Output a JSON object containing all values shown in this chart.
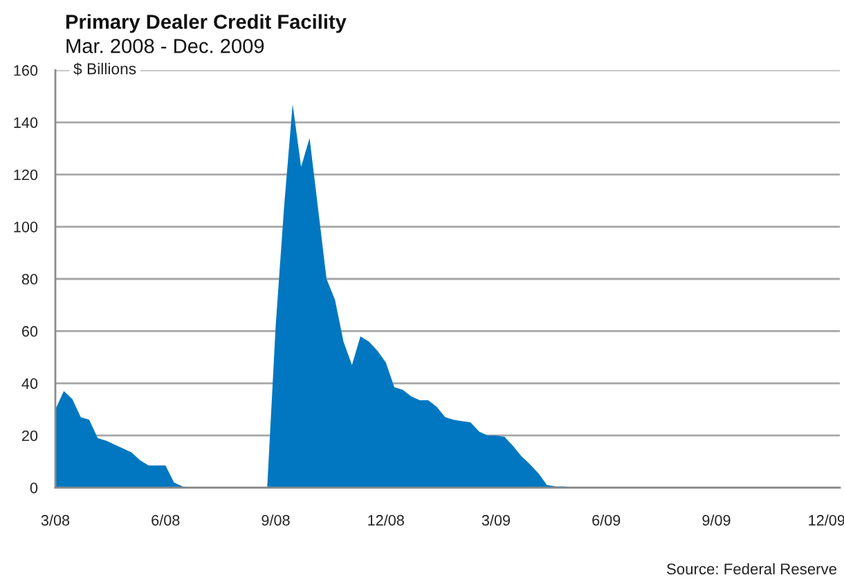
{
  "chart_data": {
    "type": "area",
    "title": "Primary Dealer Credit Facility",
    "subtitle": "Mar. 2008 - Dec. 2009",
    "ylabel": "$ Billions",
    "annotations": [
      "Source: Federal Reserve"
    ],
    "x": [
      "2008-03-19",
      "2008-03-26",
      "2008-04-02",
      "2008-04-09",
      "2008-04-16",
      "2008-04-23",
      "2008-04-30",
      "2008-05-07",
      "2008-05-14",
      "2008-05-21",
      "2008-05-28",
      "2008-06-04",
      "2008-06-11",
      "2008-06-18",
      "2008-06-25",
      "2008-07-02",
      "2008-07-09",
      "2008-07-16",
      "2008-07-23",
      "2008-07-30",
      "2008-08-06",
      "2008-08-13",
      "2008-08-20",
      "2008-08-27",
      "2008-09-03",
      "2008-09-10",
      "2008-09-17",
      "2008-09-24",
      "2008-10-01",
      "2008-10-08",
      "2008-10-15",
      "2008-10-22",
      "2008-10-29",
      "2008-11-05",
      "2008-11-12",
      "2008-11-19",
      "2008-11-26",
      "2008-12-03",
      "2008-12-10",
      "2008-12-17",
      "2008-12-24",
      "2008-12-31",
      "2009-01-07",
      "2009-01-14",
      "2009-01-21",
      "2009-01-28",
      "2009-02-04",
      "2009-02-11",
      "2009-02-18",
      "2009-02-25",
      "2009-03-04",
      "2009-03-11",
      "2009-03-18",
      "2009-03-25",
      "2009-04-01",
      "2009-04-08",
      "2009-04-15",
      "2009-04-22",
      "2009-04-29",
      "2009-05-06",
      "2009-05-13",
      "2009-05-20",
      "2009-05-27",
      "2009-06-03",
      "2009-06-10",
      "2009-06-17",
      "2009-06-24",
      "2009-07-01",
      "2009-07-08",
      "2009-07-15",
      "2009-07-22",
      "2009-07-29",
      "2009-08-05",
      "2009-08-12",
      "2009-08-19",
      "2009-08-26",
      "2009-09-02",
      "2009-09-09",
      "2009-09-16",
      "2009-09-23",
      "2009-09-30",
      "2009-10-07",
      "2009-10-14",
      "2009-10-21",
      "2009-10-28",
      "2009-11-04",
      "2009-11-11",
      "2009-11-18",
      "2009-11-25",
      "2009-12-02",
      "2009-12-09",
      "2009-12-16",
      "2009-12-23"
    ],
    "series": [
      {
        "color": "#0077c0",
        "values": [
          30,
          37,
          34,
          27,
          26,
          19,
          18,
          16.5,
          15,
          13.5,
          10.5,
          8.5,
          8.5,
          8.5,
          2,
          0.5,
          0,
          0,
          0,
          0,
          0,
          0,
          0,
          0,
          0,
          0,
          62,
          108,
          147,
          123,
          134,
          107,
          80,
          72,
          56,
          47,
          58,
          56,
          52.5,
          48,
          38.5,
          37.5,
          35,
          33.5,
          33.5,
          31,
          27,
          26,
          25.5,
          25,
          21.5,
          20,
          20,
          19.5,
          16,
          12,
          9,
          5.5,
          1,
          0.5,
          0.5,
          0,
          0,
          0,
          0,
          0,
          0,
          0,
          0,
          0,
          0,
          0,
          0,
          0,
          0,
          0,
          0,
          0,
          0,
          0,
          0,
          0,
          0,
          0,
          0,
          0,
          0,
          0,
          0,
          0,
          0,
          0,
          0
        ]
      }
    ],
    "xlim": [
      "2008-03-19",
      "2009-12-27"
    ],
    "xticks": [
      {
        "value": "2008-03-19",
        "label": "3/08"
      },
      {
        "value": "2008-06-18",
        "label": "6/08"
      },
      {
        "value": "2008-09-17",
        "label": "9/08"
      },
      {
        "value": "2008-12-17",
        "label": "12/08"
      },
      {
        "value": "2009-03-18",
        "label": "3/09"
      },
      {
        "value": "2009-06-17",
        "label": "6/09"
      },
      {
        "value": "2009-09-16",
        "label": "9/09"
      },
      {
        "value": "2009-12-16",
        "label": "12/09"
      }
    ],
    "ylim": [
      0,
      160
    ],
    "yticks": [
      0,
      20,
      40,
      60,
      80,
      100,
      120,
      140,
      160
    ],
    "grid": "y"
  }
}
